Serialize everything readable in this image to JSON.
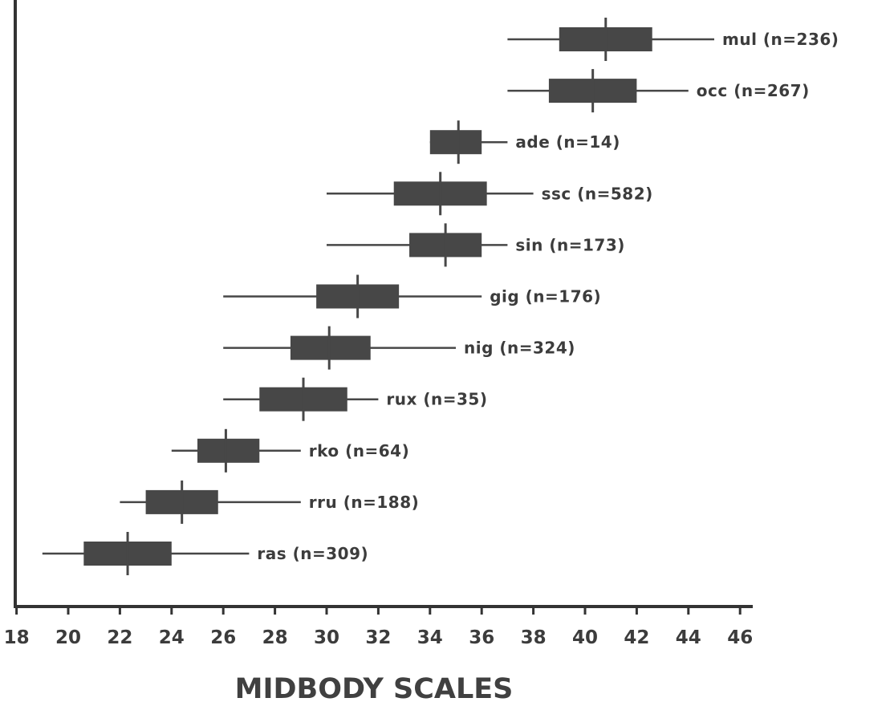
{
  "chart_data": {
    "type": "box",
    "xlabel": "MIDBODY SCALES",
    "ylabel": "",
    "title": "",
    "xlim": [
      18,
      47
    ],
    "xticks": [
      18,
      20,
      22,
      24,
      26,
      28,
      30,
      32,
      34,
      36,
      38,
      40,
      42,
      44,
      46
    ],
    "grid": false,
    "colors": {
      "box": "#474747",
      "axis": "#333333",
      "text": "#3c3c3c"
    },
    "series": [
      {
        "name": "mul",
        "label": "mul (n=236)",
        "n": 236,
        "min": 37.0,
        "q1": 39.0,
        "median": 40.8,
        "q3": 42.6,
        "max": 45.0
      },
      {
        "name": "occ",
        "label": "occ (n=267)",
        "n": 267,
        "min": 37.0,
        "q1": 38.6,
        "median": 40.3,
        "q3": 42.0,
        "max": 44.0
      },
      {
        "name": "ade",
        "label": "ade (n=14)",
        "n": 14,
        "min": 34.0,
        "q1": 34.0,
        "median": 35.1,
        "q3": 36.0,
        "max": 37.0
      },
      {
        "name": "ssc",
        "label": "ssc (n=582)",
        "n": 582,
        "min": 30.0,
        "q1": 32.6,
        "median": 34.4,
        "q3": 36.2,
        "max": 38.0
      },
      {
        "name": "sin",
        "label": "sin (n=173)",
        "n": 173,
        "min": 30.0,
        "q1": 33.2,
        "median": 34.6,
        "q3": 36.0,
        "max": 37.0
      },
      {
        "name": "gig",
        "label": "gig (n=176)",
        "n": 176,
        "min": 26.0,
        "q1": 29.6,
        "median": 31.2,
        "q3": 32.8,
        "max": 36.0
      },
      {
        "name": "nig",
        "label": "nig (n=324)",
        "n": 324,
        "min": 26.0,
        "q1": 28.6,
        "median": 30.1,
        "q3": 31.7,
        "max": 35.0
      },
      {
        "name": "rux",
        "label": "rux (n=35)",
        "n": 35,
        "min": 26.0,
        "q1": 27.4,
        "median": 29.1,
        "q3": 30.8,
        "max": 32.0
      },
      {
        "name": "rko",
        "label": "rko (n=64)",
        "n": 64,
        "min": 24.0,
        "q1": 25.0,
        "median": 26.1,
        "q3": 27.4,
        "max": 29.0
      },
      {
        "name": "rru",
        "label": "rru (n=188)",
        "n": 188,
        "min": 22.0,
        "q1": 23.0,
        "median": 24.4,
        "q3": 25.8,
        "max": 29.0
      },
      {
        "name": "ras",
        "label": "ras (n=309)",
        "n": 309,
        "min": 19.0,
        "q1": 20.6,
        "median": 22.3,
        "q3": 24.0,
        "max": 27.0
      }
    ]
  }
}
